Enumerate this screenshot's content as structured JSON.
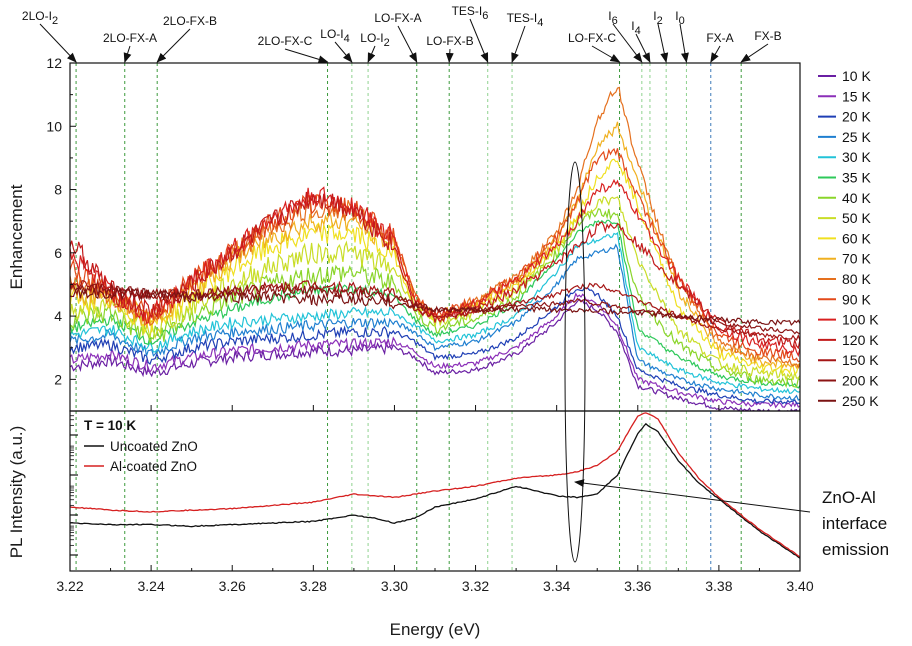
{
  "chart_data": [
    {
      "type": "line",
      "panel": "enhancement",
      "ylabel": "Enhancement",
      "xlim": [
        3.22,
        3.4
      ],
      "ylim": [
        1,
        12
      ],
      "yticks": [
        2,
        4,
        6,
        8,
        10,
        12
      ],
      "grid": false,
      "legend_placement": "right",
      "series": [
        {
          "name": "10 K",
          "color": "#6a1fa3"
        },
        {
          "name": "15 K",
          "color": "#8b2fb8"
        },
        {
          "name": "20 K",
          "color": "#1f3fb5"
        },
        {
          "name": "25 K",
          "color": "#1f7fd0"
        },
        {
          "name": "30 K",
          "color": "#22c3d8"
        },
        {
          "name": "35 K",
          "color": "#2ec95a"
        },
        {
          "name": "40 K",
          "color": "#8ad52a"
        },
        {
          "name": "50 K",
          "color": "#c9dd27"
        },
        {
          "name": "60 K",
          "color": "#f0e020"
        },
        {
          "name": "70 K",
          "color": "#f0b020"
        },
        {
          "name": "80 K",
          "color": "#e5701e"
        },
        {
          "name": "90 K",
          "color": "#e34a1a"
        },
        {
          "name": "100 K",
          "color": "#d92020"
        },
        {
          "name": "120 K",
          "color": "#c21a1a"
        },
        {
          "name": "150 K",
          "color": "#a51616"
        },
        {
          "name": "200 K",
          "color": "#8c1414"
        },
        {
          "name": "250 K",
          "color": "#7a1212"
        }
      ],
      "x": [
        3.22,
        3.23,
        3.24,
        3.25,
        3.26,
        3.27,
        3.28,
        3.29,
        3.3,
        3.305,
        3.31,
        3.32,
        3.33,
        3.34,
        3.345,
        3.35,
        3.355,
        3.36,
        3.37,
        3.38,
        3.39,
        3.4
      ],
      "values_by_series": [
        [
          2.4,
          2.6,
          2.2,
          2.5,
          2.7,
          2.8,
          2.9,
          2.9,
          3.0,
          2.7,
          2.2,
          2.3,
          2.8,
          3.8,
          4.5,
          4.2,
          3.5,
          1.8,
          1.4,
          1.1,
          1.0,
          1.0
        ],
        [
          2.6,
          2.8,
          2.4,
          2.7,
          2.9,
          3.0,
          3.1,
          3.1,
          3.2,
          2.9,
          2.4,
          2.5,
          3.0,
          4.0,
          4.7,
          4.4,
          3.7,
          2.0,
          1.6,
          1.3,
          1.2,
          1.2
        ],
        [
          3.0,
          3.1,
          2.6,
          3.0,
          3.2,
          3.3,
          3.4,
          3.5,
          3.5,
          3.2,
          2.7,
          2.8,
          3.3,
          4.3,
          4.9,
          4.7,
          4.0,
          2.3,
          1.8,
          1.5,
          1.3,
          1.3
        ],
        [
          3.2,
          3.4,
          2.8,
          3.3,
          3.5,
          3.6,
          3.7,
          3.8,
          3.8,
          3.5,
          3.0,
          3.2,
          3.8,
          5.0,
          5.8,
          6.0,
          6.2,
          2.6,
          2.0,
          1.7,
          1.5,
          1.4
        ],
        [
          3.4,
          3.6,
          3.0,
          3.5,
          3.8,
          3.9,
          4.0,
          4.1,
          4.1,
          3.7,
          3.2,
          3.4,
          4.0,
          5.4,
          6.2,
          6.4,
          6.6,
          3.0,
          2.3,
          1.9,
          1.7,
          1.6
        ],
        [
          3.6,
          3.9,
          3.2,
          3.8,
          4.2,
          4.6,
          4.8,
          4.9,
          4.6,
          3.9,
          3.4,
          3.7,
          4.4,
          5.8,
          6.6,
          7.0,
          7.0,
          3.6,
          2.7,
          2.1,
          1.9,
          1.8
        ],
        [
          3.9,
          4.1,
          3.3,
          4.0,
          4.6,
          5.0,
          5.3,
          5.4,
          5.0,
          4.1,
          3.6,
          3.9,
          4.6,
          6.0,
          6.9,
          7.3,
          7.2,
          4.6,
          3.1,
          2.3,
          2.0,
          1.9
        ],
        [
          4.2,
          4.3,
          3.5,
          4.3,
          5.0,
          5.6,
          6.0,
          6.0,
          5.5,
          4.3,
          3.8,
          4.1,
          4.8,
          6.1,
          7.0,
          7.6,
          7.7,
          5.8,
          3.6,
          2.5,
          2.2,
          2.1
        ],
        [
          4.5,
          4.5,
          3.7,
          4.6,
          5.5,
          6.2,
          6.6,
          6.6,
          5.9,
          4.4,
          3.9,
          4.3,
          5.0,
          6.2,
          7.2,
          8.4,
          9.0,
          7.5,
          4.3,
          2.8,
          2.4,
          2.3
        ],
        [
          4.8,
          4.6,
          3.8,
          4.8,
          5.8,
          6.5,
          7.0,
          7.0,
          6.2,
          4.5,
          4.0,
          4.4,
          5.1,
          6.4,
          7.6,
          9.4,
          10.0,
          8.3,
          4.8,
          3.0,
          2.6,
          2.4
        ],
        [
          5.2,
          4.7,
          3.9,
          5.0,
          6.0,
          6.8,
          7.4,
          7.3,
          6.4,
          4.6,
          4.0,
          4.5,
          5.2,
          6.6,
          8.0,
          10.2,
          11.3,
          8.8,
          5.0,
          3.2,
          2.7,
          2.5
        ],
        [
          5.6,
          4.7,
          4.0,
          5.1,
          6.1,
          7.0,
          7.6,
          7.4,
          6.5,
          4.6,
          4.0,
          4.5,
          5.2,
          6.5,
          7.6,
          9.0,
          9.2,
          7.8,
          5.2,
          3.4,
          2.9,
          2.7
        ],
        [
          6.0,
          4.8,
          4.0,
          5.1,
          6.1,
          7.1,
          7.8,
          7.5,
          6.4,
          4.5,
          4.0,
          4.4,
          5.1,
          6.2,
          7.0,
          8.0,
          8.2,
          7.2,
          5.2,
          3.6,
          3.1,
          2.9
        ],
        [
          6.4,
          4.8,
          4.1,
          5.0,
          6.0,
          7.0,
          7.8,
          7.4,
          6.2,
          4.3,
          3.9,
          4.2,
          4.8,
          5.7,
          6.2,
          6.8,
          6.9,
          6.3,
          5.0,
          3.8,
          3.3,
          3.1
        ],
        [
          5.0,
          4.9,
          4.6,
          4.6,
          4.8,
          4.9,
          5.0,
          4.9,
          4.7,
          4.2,
          4.0,
          4.1,
          4.4,
          4.7,
          4.9,
          5.0,
          4.8,
          4.5,
          4.0,
          3.6,
          3.4,
          3.3
        ],
        [
          4.9,
          4.8,
          4.7,
          4.7,
          4.8,
          4.8,
          4.8,
          4.7,
          4.6,
          4.4,
          4.2,
          4.2,
          4.3,
          4.4,
          4.5,
          4.4,
          4.3,
          4.2,
          4.0,
          3.8,
          3.6,
          3.5
        ],
        [
          4.7,
          4.7,
          4.7,
          4.6,
          4.6,
          4.6,
          4.5,
          4.5,
          4.4,
          4.3,
          4.2,
          4.2,
          4.2,
          4.2,
          4.2,
          4.2,
          4.1,
          4.1,
          4.0,
          3.9,
          3.8,
          3.8
        ]
      ]
    },
    {
      "type": "line",
      "panel": "pl",
      "xlabel": "Energy (eV)",
      "ylabel": "PL Intensity (a.u.)",
      "xlim": [
        3.22,
        3.4
      ],
      "xticks": [
        "3.22",
        "3.24",
        "3.26",
        "3.28",
        "3.30",
        "3.32",
        "3.34",
        "3.36",
        "3.38",
        "3.40"
      ],
      "ylim": [
        0,
        1
      ],
      "log_scale_y": true,
      "legend_title": "T = 10 K",
      "x": [
        3.22,
        3.23,
        3.24,
        3.25,
        3.26,
        3.27,
        3.28,
        3.29,
        3.295,
        3.3,
        3.305,
        3.31,
        3.32,
        3.33,
        3.34,
        3.345,
        3.35,
        3.355,
        3.36,
        3.362,
        3.365,
        3.37,
        3.375,
        3.38,
        3.39,
        3.4
      ],
      "series": [
        {
          "name": "Uncoated ZnO",
          "color": "#111111",
          "values": [
            0.3,
            0.29,
            0.29,
            0.28,
            0.29,
            0.3,
            0.31,
            0.35,
            0.33,
            0.3,
            0.33,
            0.4,
            0.45,
            0.53,
            0.47,
            0.46,
            0.48,
            0.6,
            0.86,
            0.92,
            0.87,
            0.69,
            0.55,
            0.45,
            0.25,
            0.08
          ]
        },
        {
          "name": "Al-coated ZnO",
          "color": "#d62020",
          "values": [
            0.4,
            0.38,
            0.37,
            0.38,
            0.39,
            0.41,
            0.43,
            0.48,
            0.47,
            0.46,
            0.48,
            0.5,
            0.53,
            0.58,
            0.6,
            0.62,
            0.66,
            0.75,
            0.97,
            0.99,
            0.95,
            0.74,
            0.58,
            0.46,
            0.26,
            0.09
          ]
        }
      ]
    }
  ],
  "peak_lines": [
    {
      "label": "2LO-I",
      "sub": "2",
      "x": 3.2215,
      "color": "#3c9a3c"
    },
    {
      "label": "2LO-FX-A",
      "sub": "",
      "x": 3.2335,
      "color": "#3c9a3c"
    },
    {
      "label": "2LO-FX-B",
      "sub": "",
      "x": 3.2415,
      "color": "#3c9a3c"
    },
    {
      "label": "2LO-FX-C",
      "sub": "",
      "x": 3.2835,
      "color": "#3c9a3c"
    },
    {
      "label": "LO-I",
      "sub": "4",
      "x": 3.2895,
      "color": "#8fd28f"
    },
    {
      "label": "LO-I",
      "sub": "2",
      "x": 3.2935,
      "color": "#8fd28f"
    },
    {
      "label": "LO-FX-A",
      "sub": "",
      "x": 3.3055,
      "color": "#3c9a3c"
    },
    {
      "label": "LO-FX-B",
      "sub": "",
      "x": 3.3135,
      "color": "#3c9a3c"
    },
    {
      "label": "TES-I",
      "sub": "6",
      "x": 3.323,
      "color": "#8fd28f"
    },
    {
      "label": "TES-I",
      "sub": "4",
      "x": 3.329,
      "color": "#8fd28f"
    },
    {
      "label": "LO-FX-C",
      "sub": "",
      "x": 3.3555,
      "color": "#3c9a3c"
    },
    {
      "label": "I",
      "sub": "6",
      "x": 3.361,
      "color": "#8fd28f"
    },
    {
      "label": "I",
      "sub": "4",
      "x": 3.363,
      "color": "#8fd28f"
    },
    {
      "label": "I",
      "sub": "2",
      "x": 3.367,
      "color": "#8fd28f"
    },
    {
      "label": "I",
      "sub": "0",
      "x": 3.372,
      "color": "#8fd28f"
    },
    {
      "label": "FX-A",
      "sub": "",
      "x": 3.378,
      "color": "#3c7ab8"
    },
    {
      "label": "FX-B",
      "sub": "",
      "x": 3.3855,
      "color": "#3c9a3c"
    }
  ],
  "callout": {
    "lines": [
      "ZnO-Al",
      "interface",
      "emission"
    ]
  }
}
